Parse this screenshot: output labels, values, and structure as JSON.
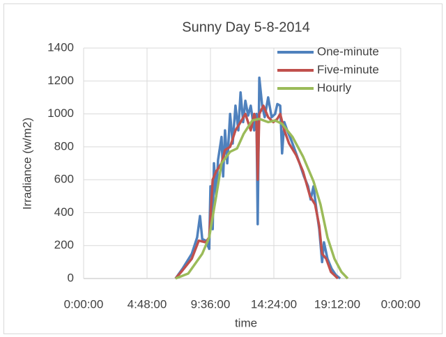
{
  "chart_data": {
    "type": "line",
    "title": "Sunny Day 5-8-2014",
    "x_label": "time",
    "y_label": "Irradiance (w/m2)",
    "xlim": [
      0,
      1
    ],
    "xticks": [
      {
        "value": 0,
        "label": "0:00:00"
      },
      {
        "value": 0.2,
        "label": "4:48:00"
      },
      {
        "value": 0.4,
        "label": "9:36:00"
      },
      {
        "value": 0.6,
        "label": "14:24:00"
      },
      {
        "value": 0.8,
        "label": "19:12:00"
      },
      {
        "value": 1,
        "label": "0:00:00"
      }
    ],
    "ylim": [
      0,
      1400
    ],
    "yticks": [
      0,
      200,
      400,
      600,
      800,
      1000,
      1200,
      1400
    ],
    "grid": true,
    "legend": "top-right",
    "series": [
      {
        "name": "One-minute",
        "color": "#4f81bd",
        "x": [
          0.29,
          0.312,
          0.341,
          0.358,
          0.367,
          0.374,
          0.385,
          0.396,
          0.4,
          0.407,
          0.411,
          0.418,
          0.424,
          0.435,
          0.44,
          0.446,
          0.453,
          0.462,
          0.47,
          0.479,
          0.488,
          0.495,
          0.503,
          0.51,
          0.519,
          0.527,
          0.538,
          0.545,
          0.549,
          0.554,
          0.563,
          0.571,
          0.582,
          0.593,
          0.604,
          0.611,
          0.62,
          0.626,
          0.633,
          0.642,
          0.655,
          0.67,
          0.681,
          0.695,
          0.708,
          0.716,
          0.725,
          0.734,
          0.743,
          0.752,
          0.758,
          0.769,
          0.782,
          0.796,
          0.809
        ],
        "values": [
          0,
          60,
          150,
          250,
          380,
          240,
          230,
          180,
          560,
          300,
          700,
          500,
          720,
          860,
          620,
          900,
          700,
          1000,
          820,
          1050,
          900,
          1130,
          950,
          1080,
          990,
          1050,
          900,
          1000,
          330,
          1220,
          1050,
          980,
          1100,
          980,
          1000,
          1060,
          1050,
          760,
          950,
          900,
          840,
          760,
          700,
          620,
          560,
          480,
          560,
          420,
          300,
          100,
          220,
          120,
          60,
          20,
          0
        ]
      },
      {
        "name": "Five-minute",
        "color": "#c0504d",
        "x": [
          0.29,
          0.312,
          0.341,
          0.363,
          0.385,
          0.396,
          0.407,
          0.418,
          0.435,
          0.446,
          0.462,
          0.479,
          0.495,
          0.51,
          0.527,
          0.538,
          0.545,
          0.549,
          0.554,
          0.567,
          0.582,
          0.598,
          0.611,
          0.62,
          0.633,
          0.648,
          0.67,
          0.692,
          0.714,
          0.73,
          0.743,
          0.752,
          0.765,
          0.78,
          0.802
        ],
        "values": [
          0,
          50,
          120,
          230,
          220,
          250,
          600,
          650,
          700,
          780,
          800,
          900,
          950,
          1000,
          900,
          1000,
          950,
          600,
          1000,
          1050,
          980,
          950,
          970,
          1000,
          900,
          820,
          750,
          650,
          500,
          450,
          320,
          150,
          120,
          40,
          0
        ]
      },
      {
        "name": "Hourly",
        "color": "#9bbb59",
        "x": [
          0.29,
          0.33,
          0.374,
          0.396,
          0.418,
          0.435,
          0.462,
          0.484,
          0.505,
          0.532,
          0.554,
          0.582,
          0.604,
          0.626,
          0.659,
          0.692,
          0.725,
          0.747,
          0.769,
          0.791,
          0.813,
          0.833
        ],
        "values": [
          0,
          30,
          150,
          250,
          500,
          700,
          770,
          790,
          880,
          960,
          970,
          950,
          960,
          940,
          860,
          740,
          590,
          450,
          250,
          120,
          40,
          0
        ]
      }
    ]
  }
}
